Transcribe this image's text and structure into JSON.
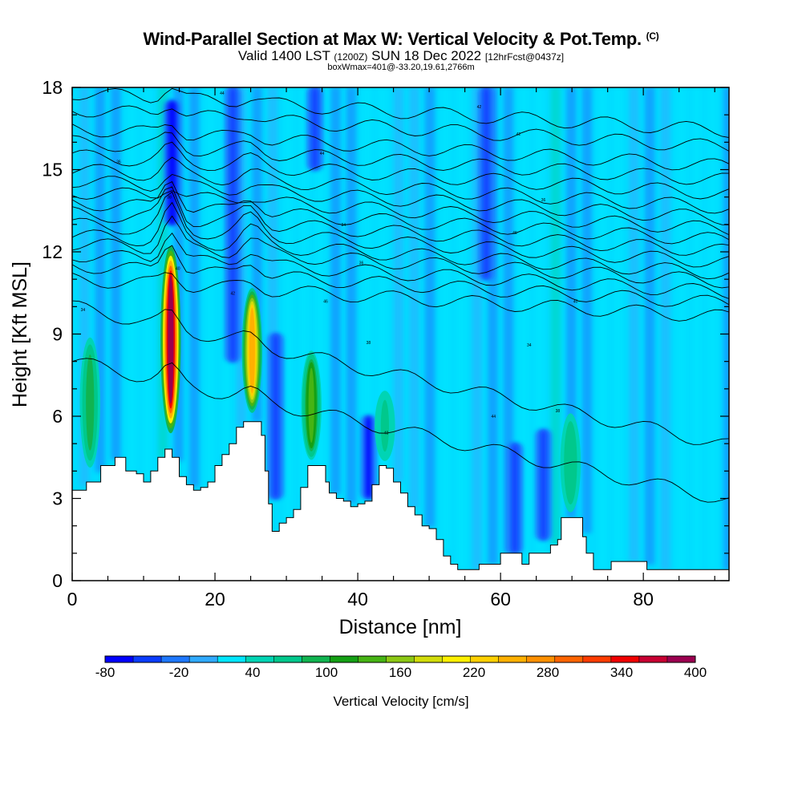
{
  "title": {
    "main": "Wind-Parallel Section at Max W: Vertical Velocity & Pot.Temp.",
    "copyright": "(C)",
    "valid_prefix": "Valid 1400 LST",
    "valid_utc": "(1200Z)",
    "valid_date": "SUN 18 Dec 2022",
    "forecast": "[12hrFcst@0437z]",
    "boxinfo": "boxWmax=401@-33.20,19.61,2766m"
  },
  "chart_data": {
    "type": "heatmap",
    "title": "Wind-Parallel Section at Max W: Vertical Velocity & Pot.Temp.",
    "xlabel": "Distance [nm]",
    "ylabel": "Height [Kft MSL]",
    "xlim": [
      0,
      92
    ],
    "ylim": [
      0,
      18
    ],
    "x_ticks": [
      0,
      20,
      40,
      60,
      80
    ],
    "y_ticks": [
      0,
      3,
      6,
      9,
      12,
      15,
      18
    ],
    "colorbar": {
      "label": "Vertical Velocity [cm/s]",
      "bounds": [
        -80,
        400
      ],
      "tick_values": [
        -80,
        -20,
        40,
        100,
        160,
        220,
        280,
        340,
        400
      ],
      "tick_labels": [
        "-80",
        "-20",
        "40",
        "100",
        "160",
        "220",
        "280",
        "340",
        "400"
      ],
      "colors": [
        "#0000ff",
        "#0a3cff",
        "#1e78ff",
        "#30aaff",
        "#00e6ff",
        "#00d4b4",
        "#00c88c",
        "#10b450",
        "#14a014",
        "#46b414",
        "#8cc814",
        "#d2dc0a",
        "#fff000",
        "#ffd000",
        "#ffb000",
        "#ff9000",
        "#ff6400",
        "#ff3c00",
        "#f00000",
        "#c80032",
        "#9b0050"
      ]
    },
    "terrain_kft": [
      [
        0,
        3.3
      ],
      [
        2,
        3.6
      ],
      [
        4,
        4.2
      ],
      [
        6,
        4.5
      ],
      [
        7.5,
        4.0
      ],
      [
        9,
        3.9
      ],
      [
        10,
        3.6
      ],
      [
        11,
        4.0
      ],
      [
        12,
        4.5
      ],
      [
        13,
        4.8
      ],
      [
        14,
        4.5
      ],
      [
        15,
        3.8
      ],
      [
        16,
        3.5
      ],
      [
        17,
        3.3
      ],
      [
        18,
        3.4
      ],
      [
        19,
        3.6
      ],
      [
        20,
        4.2
      ],
      [
        21,
        4.6
      ],
      [
        22,
        5.0
      ],
      [
        23,
        5.6
      ],
      [
        24,
        5.8
      ],
      [
        26,
        5.8
      ],
      [
        26.5,
        5.3
      ],
      [
        27,
        4.0
      ],
      [
        27.5,
        2.8
      ],
      [
        28,
        1.8
      ],
      [
        29,
        2.1
      ],
      [
        30,
        2.3
      ],
      [
        31,
        2.6
      ],
      [
        32,
        3.4
      ],
      [
        33,
        4.2
      ],
      [
        34,
        4.2
      ],
      [
        35,
        4.2
      ],
      [
        35.5,
        3.6
      ],
      [
        36,
        3.2
      ],
      [
        37,
        3.0
      ],
      [
        38,
        2.9
      ],
      [
        39,
        2.7
      ],
      [
        40,
        2.8
      ],
      [
        41,
        2.9
      ],
      [
        42,
        3.5
      ],
      [
        43,
        4.2
      ],
      [
        44,
        4.1
      ],
      [
        45,
        3.6
      ],
      [
        46,
        3.2
      ],
      [
        47,
        2.7
      ],
      [
        48,
        2.4
      ],
      [
        49,
        2.0
      ],
      [
        50,
        1.9
      ],
      [
        51,
        1.5
      ],
      [
        52,
        0.9
      ],
      [
        53,
        0.6
      ],
      [
        54,
        0.4
      ],
      [
        56,
        0.4
      ],
      [
        57,
        0.6
      ],
      [
        59,
        0.6
      ],
      [
        60,
        1.0
      ],
      [
        62,
        1.0
      ],
      [
        63,
        0.6
      ],
      [
        64,
        1.0
      ],
      [
        66,
        1.0
      ],
      [
        67,
        1.3
      ],
      [
        68,
        1.5
      ],
      [
        68.5,
        2.3
      ],
      [
        71,
        2.3
      ],
      [
        71.5,
        1.6
      ],
      [
        72,
        1.0
      ],
      [
        73,
        0.4
      ],
      [
        75,
        0.4
      ],
      [
        75.5,
        0.7
      ],
      [
        80,
        0.7
      ],
      [
        80.5,
        0.4
      ],
      [
        92,
        0.4
      ]
    ],
    "updrafts": [
      {
        "x": 13.8,
        "bottom_kft": 5.2,
        "top_kft": 12.4,
        "max_cms": 401
      },
      {
        "x": 25.2,
        "bottom_kft": 6.0,
        "top_kft": 10.8,
        "max_cms": 250
      },
      {
        "x": 33.5,
        "bottom_kft": 4.3,
        "top_kft": 8.5,
        "max_cms": 130
      },
      {
        "x": 2.5,
        "bottom_kft": 4.0,
        "top_kft": 9.0,
        "max_cms": 90
      },
      {
        "x": 69.8,
        "bottom_kft": 2.4,
        "top_kft": 6.2,
        "max_cms": 70
      },
      {
        "x": 43.8,
        "bottom_kft": 4.3,
        "top_kft": 7.0,
        "max_cms": 60
      }
    ],
    "downdrafts": [
      {
        "x": 14.0,
        "bottom_kft": 13.0,
        "top_kft": 17.5,
        "min_cms": -80
      },
      {
        "x": 28.5,
        "bottom_kft": 3.0,
        "top_kft": 9.0,
        "min_cms": -50
      },
      {
        "x": 41.5,
        "bottom_kft": 3.0,
        "top_kft": 6.0,
        "min_cms": -60
      },
      {
        "x": 34.0,
        "bottom_kft": 15.0,
        "top_kft": 18.0,
        "min_cms": -50
      },
      {
        "x": 62.0,
        "bottom_kft": 1.0,
        "top_kft": 5.0,
        "min_cms": -45
      },
      {
        "x": 58.0,
        "bottom_kft": 11.0,
        "top_kft": 18.0,
        "min_cms": -40
      },
      {
        "x": 66.0,
        "bottom_kft": 1.5,
        "top_kft": 5.5,
        "min_cms": -40
      },
      {
        "x": 22.5,
        "bottom_kft": 8.0,
        "top_kft": 18.0,
        "min_cms": -45
      }
    ],
    "theta_isentropes_kft_at_x0": [
      8.0,
      10.0,
      11.0,
      11.5,
      11.9,
      12.3,
      12.6,
      13.0,
      13.4,
      13.8,
      14.2,
      14.6,
      15.0,
      15.5,
      16.0,
      16.5,
      17.2,
      17.8
    ],
    "theta_labels": [
      "34",
      "36",
      "38",
      "40",
      "42",
      "44",
      "46"
    ]
  }
}
